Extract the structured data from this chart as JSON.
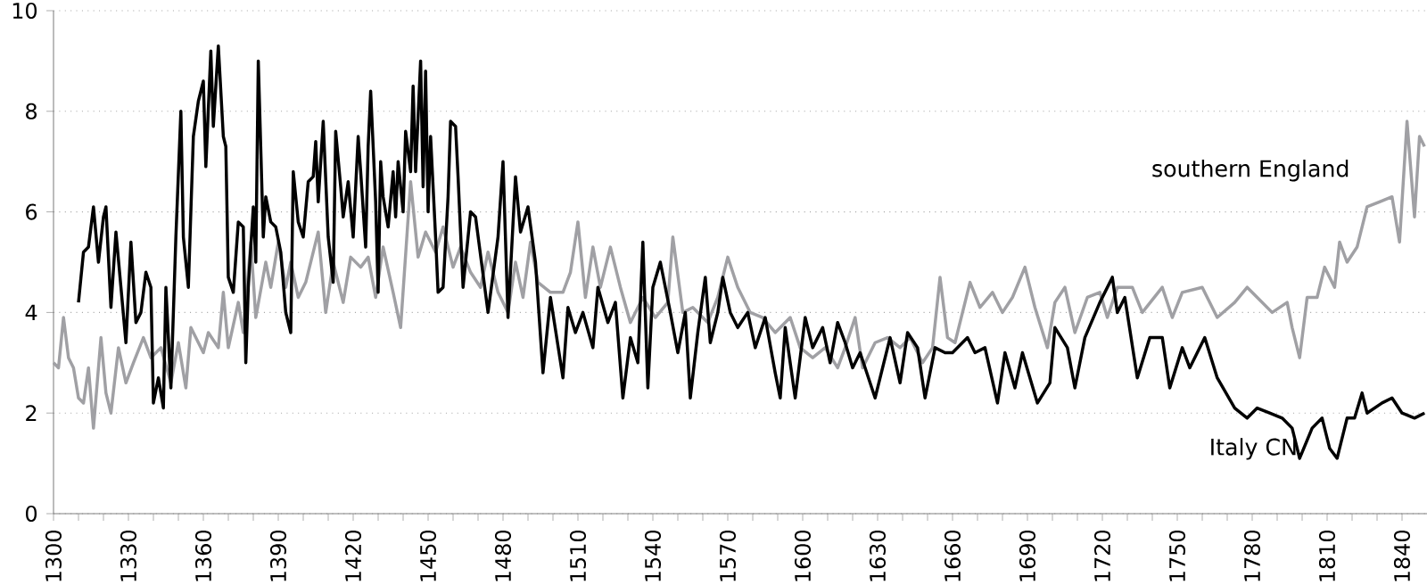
{
  "chart_data": {
    "type": "line",
    "xlim": [
      1300,
      1850
    ],
    "ylim": [
      0,
      10
    ],
    "xticks": [
      1300,
      1330,
      1360,
      1390,
      1420,
      1450,
      1480,
      1510,
      1540,
      1570,
      1600,
      1630,
      1660,
      1690,
      1720,
      1750,
      1780,
      1810,
      1840
    ],
    "yticks": [
      0,
      2,
      4,
      6,
      8,
      10
    ],
    "grid": "y",
    "series": [
      {
        "name": "southern England",
        "color": "#a0a0a4",
        "x": [
          1300,
          1302,
          1304,
          1306,
          1308,
          1310,
          1312,
          1314,
          1316,
          1319,
          1321,
          1323,
          1326,
          1329,
          1332,
          1336,
          1339,
          1343,
          1347,
          1350,
          1353,
          1355,
          1360,
          1362,
          1366,
          1368,
          1370,
          1374,
          1376,
          1379,
          1381,
          1385,
          1387,
          1390,
          1393,
          1395,
          1398,
          1401,
          1406,
          1409,
          1412,
          1416,
          1419,
          1423,
          1426,
          1429,
          1432,
          1436,
          1439,
          1443,
          1446,
          1449,
          1453,
          1456,
          1460,
          1463,
          1467,
          1471,
          1474,
          1478,
          1482,
          1485,
          1488,
          1491,
          1494,
          1499,
          1504,
          1507,
          1510,
          1513,
          1516,
          1519,
          1523,
          1527,
          1531,
          1536,
          1541,
          1546,
          1548,
          1552,
          1556,
          1562,
          1566,
          1570,
          1574,
          1579,
          1584,
          1589,
          1595,
          1599,
          1604,
          1609,
          1614,
          1617,
          1621,
          1624,
          1629,
          1634,
          1639,
          1643,
          1648,
          1652,
          1655,
          1658,
          1661,
          1667,
          1671,
          1676,
          1680,
          1684,
          1689,
          1693,
          1698,
          1701,
          1705,
          1709,
          1714,
          1719,
          1722,
          1726,
          1732,
          1736,
          1744,
          1748,
          1752,
          1760,
          1766,
          1773,
          1778,
          1782,
          1788,
          1794,
          1796,
          1799,
          1802,
          1806,
          1809,
          1813,
          1815,
          1818,
          1822,
          1826,
          1831,
          1836,
          1839,
          1842,
          1845,
          1847,
          1849
        ],
        "values": [
          3.0,
          2.9,
          3.9,
          3.1,
          2.9,
          2.3,
          2.2,
          2.9,
          1.7,
          3.5,
          2.4,
          2.0,
          3.3,
          2.6,
          3.0,
          3.5,
          3.1,
          3.3,
          2.6,
          3.4,
          2.5,
          3.7,
          3.2,
          3.6,
          3.3,
          4.4,
          3.3,
          4.2,
          3.6,
          5.4,
          3.9,
          5.0,
          4.5,
          5.4,
          4.5,
          5.0,
          4.3,
          4.6,
          5.6,
          4.0,
          5.0,
          4.2,
          5.1,
          4.9,
          5.1,
          4.3,
          5.3,
          4.4,
          3.7,
          6.6,
          5.1,
          5.6,
          5.2,
          5.7,
          4.9,
          5.3,
          4.8,
          4.5,
          5.2,
          4.4,
          4.0,
          5.0,
          4.3,
          5.4,
          4.6,
          4.4,
          4.4,
          4.8,
          5.8,
          4.3,
          5.3,
          4.5,
          5.3,
          4.5,
          3.8,
          4.3,
          3.9,
          4.2,
          5.5,
          4.0,
          4.1,
          3.8,
          4.3,
          5.1,
          4.5,
          4.0,
          3.9,
          3.6,
          3.9,
          3.3,
          3.1,
          3.3,
          2.9,
          3.3,
          3.9,
          2.9,
          3.4,
          3.5,
          3.3,
          3.5,
          3.0,
          3.3,
          4.7,
          3.5,
          3.4,
          4.6,
          4.1,
          4.4,
          4.0,
          4.3,
          4.9,
          4.1,
          3.3,
          4.2,
          4.5,
          3.6,
          4.3,
          4.4,
          3.9,
          4.5,
          4.5,
          4.0,
          4.5,
          3.9,
          4.4,
          4.5,
          3.9,
          4.2,
          4.5,
          4.3,
          4.0,
          4.2,
          3.7,
          3.1,
          4.3,
          4.3,
          4.9,
          4.5,
          5.4,
          5.0,
          5.3,
          6.1,
          6.2,
          6.3,
          5.4,
          7.8,
          5.9,
          7.5,
          7.3
        ]
      },
      {
        "name": "Italy CN",
        "color": "#000000",
        "x": [
          1310,
          1312,
          1314,
          1316,
          1318,
          1320,
          1321,
          1323,
          1325,
          1327,
          1329,
          1331,
          1333,
          1335,
          1337,
          1339,
          1340,
          1342,
          1344,
          1345,
          1347,
          1349,
          1351,
          1352,
          1354,
          1356,
          1358,
          1360,
          1361,
          1363,
          1364,
          1366,
          1368,
          1369,
          1370,
          1372,
          1374,
          1376,
          1377,
          1378,
          1380,
          1381,
          1382,
          1384,
          1385,
          1387,
          1389,
          1391,
          1393,
          1395,
          1396,
          1398,
          1400,
          1402,
          1404,
          1405,
          1406,
          1408,
          1410,
          1412,
          1413,
          1415,
          1416,
          1418,
          1420,
          1422,
          1423,
          1425,
          1426,
          1427,
          1429,
          1430,
          1431,
          1432,
          1434,
          1436,
          1437,
          1438,
          1440,
          1441,
          1443,
          1444,
          1445,
          1447,
          1448,
          1449,
          1450,
          1451,
          1453,
          1454,
          1456,
          1458,
          1459,
          1461,
          1462,
          1464,
          1467,
          1469,
          1474,
          1478,
          1480,
          1482,
          1485,
          1487,
          1490,
          1493,
          1496,
          1499,
          1504,
          1506,
          1509,
          1512,
          1516,
          1518,
          1522,
          1525,
          1528,
          1531,
          1534,
          1536,
          1538,
          1540,
          1543,
          1547,
          1550,
          1553,
          1555,
          1558,
          1561,
          1563,
          1566,
          1568,
          1571,
          1574,
          1578,
          1581,
          1585,
          1589,
          1591,
          1593,
          1597,
          1601,
          1604,
          1608,
          1611,
          1614,
          1617,
          1620,
          1623,
          1629,
          1635,
          1639,
          1642,
          1646,
          1649,
          1653,
          1657,
          1660,
          1666,
          1669,
          1673,
          1678,
          1681,
          1685,
          1688,
          1694,
          1699,
          1701,
          1706,
          1709,
          1713,
          1719,
          1724,
          1726,
          1729,
          1734,
          1739,
          1744,
          1747,
          1752,
          1755,
          1761,
          1766,
          1773,
          1778,
          1782,
          1787,
          1792,
          1796,
          1799,
          1804,
          1808,
          1811,
          1814,
          1818,
          1821,
          1824,
          1826,
          1832,
          1836,
          1840,
          1845,
          1849
        ],
        "values": [
          4.2,
          5.2,
          5.3,
          6.1,
          5.0,
          5.9,
          6.1,
          4.1,
          5.6,
          4.5,
          3.4,
          5.4,
          3.8,
          4.0,
          4.8,
          4.5,
          2.2,
          2.7,
          2.1,
          4.5,
          2.5,
          5.5,
          8.0,
          5.5,
          4.5,
          7.5,
          8.2,
          8.6,
          6.9,
          9.2,
          7.7,
          9.3,
          7.5,
          7.3,
          4.7,
          4.4,
          5.8,
          5.7,
          3.0,
          4.5,
          6.1,
          5.0,
          9.0,
          5.5,
          6.3,
          5.8,
          5.7,
          5.2,
          4.0,
          3.6,
          6.8,
          5.8,
          5.5,
          6.6,
          6.7,
          7.4,
          6.2,
          7.8,
          5.5,
          4.6,
          7.6,
          6.5,
          5.9,
          6.6,
          5.5,
          7.5,
          6.8,
          5.3,
          7.3,
          8.4,
          6.2,
          4.4,
          7.0,
          6.3,
          5.7,
          6.8,
          5.9,
          7.0,
          6.0,
          7.6,
          6.8,
          8.5,
          6.8,
          9.0,
          6.5,
          8.8,
          6.0,
          7.5,
          5.5,
          4.4,
          4.5,
          6.3,
          7.8,
          7.7,
          6.7,
          4.5,
          6.0,
          5.9,
          4.0,
          5.5,
          7.0,
          3.9,
          6.7,
          5.6,
          6.1,
          5.0,
          2.8,
          4.3,
          2.7,
          4.1,
          3.6,
          4.0,
          3.3,
          4.5,
          3.8,
          4.2,
          2.3,
          3.5,
          3.0,
          5.4,
          2.5,
          4.5,
          5.0,
          4.0,
          3.2,
          4.0,
          2.3,
          3.6,
          4.7,
          3.4,
          4.0,
          4.7,
          4.0,
          3.7,
          4.0,
          3.3,
          3.9,
          2.8,
          2.3,
          3.7,
          2.3,
          3.9,
          3.3,
          3.7,
          3.0,
          3.8,
          3.4,
          2.9,
          3.2,
          2.3,
          3.5,
          2.6,
          3.6,
          3.3,
          2.3,
          3.3,
          3.2,
          3.2,
          3.5,
          3.2,
          3.3,
          2.2,
          3.2,
          2.5,
          3.2,
          2.2,
          2.6,
          3.7,
          3.3,
          2.5,
          3.5,
          4.2,
          4.7,
          4.0,
          4.3,
          2.7,
          3.5,
          3.5,
          2.5,
          3.3,
          2.9,
          3.5,
          2.7,
          2.1,
          1.9,
          2.1,
          2.0,
          1.9,
          1.7,
          1.1,
          1.7,
          1.9,
          1.3,
          1.1,
          1.9,
          1.9,
          2.4,
          2.0,
          2.2,
          2.3,
          2.0,
          1.9,
          2.0
        ]
      }
    ]
  }
}
